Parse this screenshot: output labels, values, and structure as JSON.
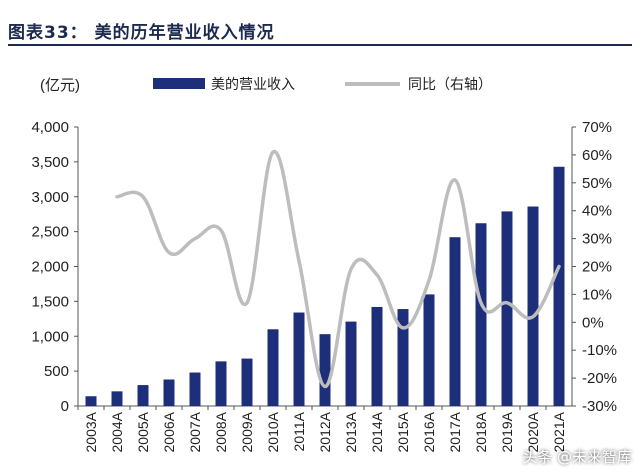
{
  "title": "图表33：   美的历年营业收入情况",
  "watermark": "头条 @未来智库",
  "colors": {
    "bar": "#1d2f7a",
    "line": "#bdbdbd",
    "title": "#1b2a4e"
  },
  "chart_data": {
    "type": "bar",
    "ylabel_left": "(亿元)",
    "categories": [
      "2003A",
      "2004A",
      "2005A",
      "2006A",
      "2007A",
      "2008A",
      "2009A",
      "2010A",
      "2011A",
      "2012A",
      "2013A",
      "2014A",
      "2015A",
      "2016A",
      "2017A",
      "2018A",
      "2019A",
      "2020A",
      "2021A"
    ],
    "series": [
      {
        "name": "美的营业收入",
        "type": "bar",
        "axis": "left",
        "values": [
          140,
          210,
          300,
          380,
          480,
          640,
          680,
          1100,
          1340,
          1030,
          1210,
          1420,
          1390,
          1600,
          2420,
          2620,
          2790,
          2860,
          3430
        ]
      },
      {
        "name": "同比（右轴）",
        "type": "line",
        "axis": "right",
        "values": [
          null,
          45,
          45,
          25,
          30,
          33,
          7,
          61,
          22,
          -23,
          19,
          17,
          -2,
          15,
          51,
          7,
          7,
          2,
          20
        ]
      }
    ],
    "y_left": {
      "min": 0,
      "max": 4000,
      "ticks": [
        "0",
        "500",
        "1,000",
        "1,500",
        "2,000",
        "2,500",
        "3,000",
        "3,500",
        "4,000"
      ]
    },
    "y_right": {
      "min": -30,
      "max": 70,
      "ticks": [
        "-30%",
        "-20%",
        "-10%",
        "0%",
        "10%",
        "20%",
        "30%",
        "40%",
        "50%",
        "60%",
        "70%"
      ]
    },
    "legend_position": "top",
    "grid": false
  }
}
